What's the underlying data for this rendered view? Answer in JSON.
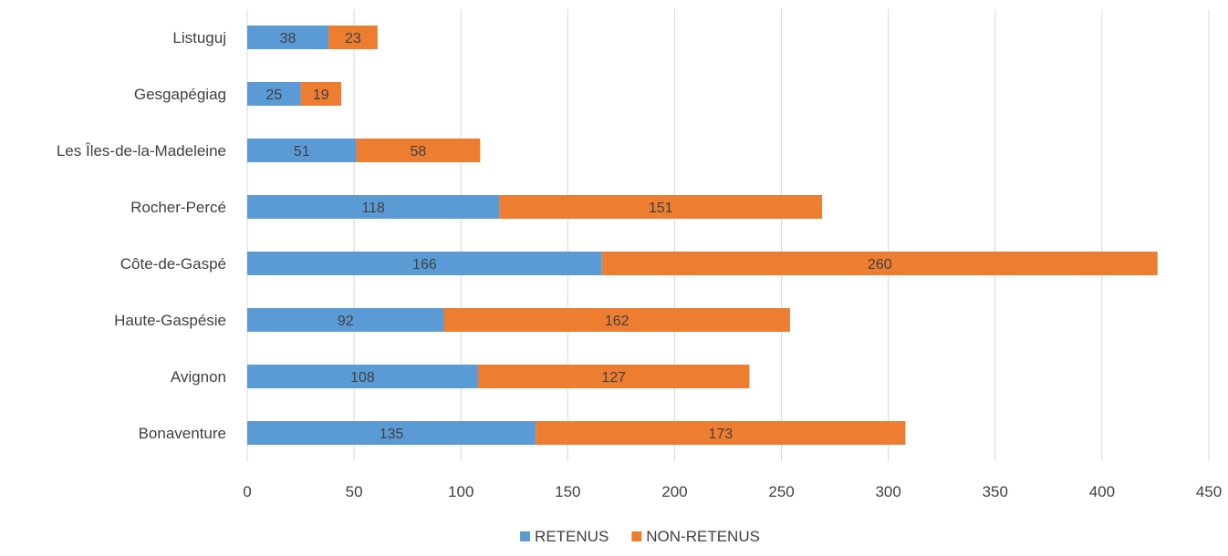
{
  "chart_data": {
    "type": "bar",
    "orientation": "horizontal",
    "stacked": true,
    "categories": [
      "Listuguj",
      "Gesgapégiag",
      "Les Îles-de-la-Madeleine",
      "Rocher-Percé",
      "Côte-de-Gaspé",
      "Haute-Gaspésie",
      "Avignon",
      "Bonaventure"
    ],
    "series": [
      {
        "name": "RETENUS",
        "color": "#5b9bd5",
        "values": [
          38,
          25,
          51,
          118,
          166,
          92,
          108,
          135
        ]
      },
      {
        "name": "NON-RETENUS",
        "color": "#ed7d31",
        "values": [
          23,
          19,
          58,
          151,
          260,
          162,
          127,
          173
        ]
      }
    ],
    "xlim": [
      0,
      450
    ],
    "xticks": [
      "0",
      "50",
      "100",
      "150",
      "200",
      "250",
      "300",
      "350",
      "400",
      "450"
    ],
    "grid": true,
    "data_labels": true,
    "legend_position": "bottom"
  }
}
